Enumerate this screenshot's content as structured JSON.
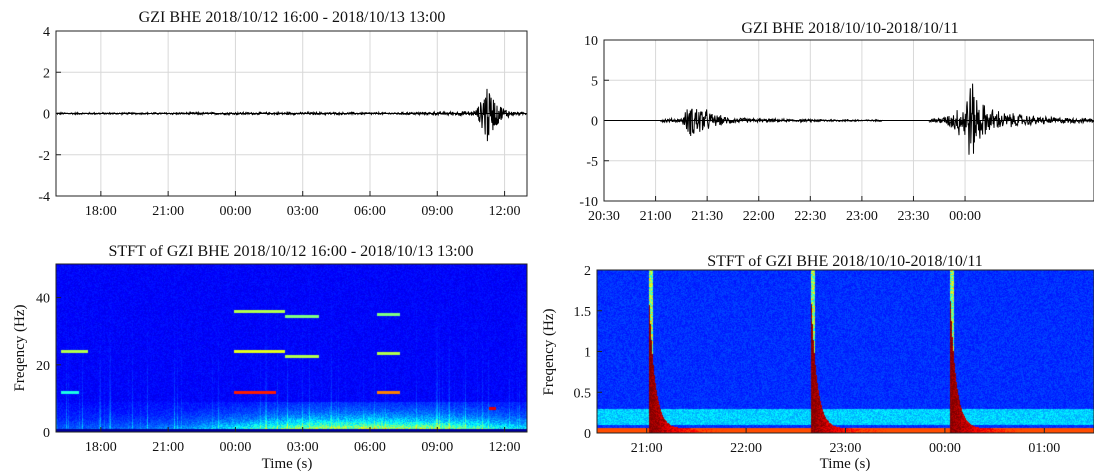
{
  "chart_data": [
    {
      "id": "p1",
      "type": "line",
      "title": "GZI  BHE  2018/10/12 16:00 - 2018/10/13 13:00",
      "xlabel": "",
      "ylabel": "",
      "ylim": [
        -4,
        4
      ],
      "yticks": [
        4,
        2,
        0,
        -2,
        -4
      ],
      "xlim_hours": [
        16.0,
        37.0
      ],
      "xticks": [
        {
          "label": "18:00",
          "h": 18
        },
        {
          "label": "21:00",
          "h": 21
        },
        {
          "label": "00:00",
          "h": 24
        },
        {
          "label": "03:00",
          "h": 27
        },
        {
          "label": "06:00",
          "h": 30
        },
        {
          "label": "09:00",
          "h": 33
        },
        {
          "label": "12:00",
          "h": 36
        }
      ],
      "grid": true,
      "series": [
        {
          "kind": "envelope",
          "color": "#000000",
          "x_hours": [
            16.0,
            20.0,
            24.0,
            28.0,
            31.0,
            33.5,
            34.7,
            35.0,
            35.1,
            35.25,
            35.4,
            35.6,
            35.8,
            36.1,
            36.5,
            37.0
          ],
          "amp": [
            0.05,
            0.05,
            0.07,
            0.07,
            0.06,
            0.1,
            0.15,
            0.8,
            2.4,
            1.9,
            1.2,
            0.8,
            0.5,
            0.25,
            0.1,
            0.06
          ]
        }
      ]
    },
    {
      "id": "p2",
      "type": "line",
      "title": "GZI  BHE  2018/10/10-2018/10/11",
      "xlabel": "",
      "ylabel": "",
      "ylim": [
        -10,
        10
      ],
      "yticks": [
        10,
        5,
        0,
        -5,
        -10
      ],
      "xlim_hours": [
        20.5,
        25.25
      ],
      "xticks": [
        {
          "label": "20:30",
          "h": 20.5
        },
        {
          "label": "21:00",
          "h": 21.0
        },
        {
          "label": "21:30",
          "h": 21.5
        },
        {
          "label": "22:00",
          "h": 22.0
        },
        {
          "label": "22:30",
          "h": 22.5
        },
        {
          "label": "23:00",
          "h": 23.0
        },
        {
          "label": "23:30",
          "h": 23.5
        },
        {
          "label": "00:00",
          "h": 24.0
        }
      ],
      "grid": true,
      "series": [
        {
          "kind": "envelope",
          "color": "#000000",
          "segments": [
            {
              "x_hours": [
                21.05,
                21.25,
                21.3,
                21.38,
                21.45,
                21.55,
                21.7,
                21.9,
                22.3,
                22.8,
                23.2
              ],
              "amp": [
                0.25,
                0.3,
                1.6,
                2.8,
                2.0,
                1.0,
                0.5,
                0.3,
                0.2,
                0.15,
                0.1
              ]
            },
            {
              "x_hours": [
                23.65,
                23.8,
                23.9,
                24.0,
                24.05,
                24.12,
                24.2,
                24.4,
                24.7,
                25.0,
                25.25
              ],
              "amp": [
                0.3,
                0.5,
                1.5,
                3.0,
                6.5,
                3.5,
                2.0,
                1.1,
                0.6,
                0.4,
                0.3
              ]
            }
          ]
        }
      ]
    },
    {
      "id": "p3",
      "type": "heatmap",
      "title": "STFT  of  GZI  BHE  2018/10/12 16:00 - 2018/10/13 13:00",
      "xlabel": "Time (s)",
      "ylabel": "Freqency (Hz)",
      "ylim": [
        0,
        50
      ],
      "yticks": [
        40,
        20,
        0
      ],
      "xlim_hours": [
        16.0,
        37.0
      ],
      "xticks": [
        {
          "label": "18:00",
          "h": 18
        },
        {
          "label": "21:00",
          "h": 21
        },
        {
          "label": "00:00",
          "h": 24
        },
        {
          "label": "03:00",
          "h": 27
        },
        {
          "label": "06:00",
          "h": 30
        },
        {
          "label": "09:00",
          "h": 33
        },
        {
          "label": "12:00",
          "h": 36
        }
      ],
      "colormap": "jet",
      "harmonic_lines": [
        {
          "h": [
            16.2,
            17.4
          ],
          "f": 24.0,
          "level": 0.55
        },
        {
          "h": [
            16.2,
            17.0
          ],
          "f": 12.0,
          "level": 0.4
        },
        {
          "h": [
            23.9,
            26.2
          ],
          "f": 36.0,
          "level": 0.55
        },
        {
          "h": [
            23.9,
            26.2
          ],
          "f": 24.0,
          "level": 0.6
        },
        {
          "h": [
            23.9,
            25.8
          ],
          "f": 12.0,
          "level": 0.85
        },
        {
          "h": [
            26.2,
            27.7
          ],
          "f": 34.5,
          "level": 0.5
        },
        {
          "h": [
            26.2,
            27.7
          ],
          "f": 22.5,
          "level": 0.55
        },
        {
          "h": [
            30.3,
            31.3
          ],
          "f": 35.0,
          "level": 0.5
        },
        {
          "h": [
            30.3,
            31.3
          ],
          "f": 23.5,
          "level": 0.55
        },
        {
          "h": [
            30.3,
            31.3
          ],
          "f": 12.0,
          "level": 0.75
        },
        {
          "h": [
            35.3,
            35.6
          ],
          "f": 7.0,
          "level": 0.9
        }
      ],
      "energy": {
        "h": [
          16,
          20,
          22,
          24,
          27,
          30,
          33,
          35,
          37
        ],
        "level": [
          0.12,
          0.15,
          0.22,
          0.35,
          0.55,
          0.6,
          0.55,
          0.45,
          0.3
        ]
      }
    },
    {
      "id": "p4",
      "type": "heatmap",
      "title": "STFT  of  GZI  BHE  2018/10/10-2018/10/11",
      "xlabel": "Time (s)",
      "ylabel": "Freqency (Hz)",
      "ylim": [
        0,
        2
      ],
      "yticks": [
        2,
        1.5,
        1,
        0.5,
        0
      ],
      "xlim_hours": [
        20.5,
        25.5
      ],
      "xticks": [
        {
          "label": "21:00",
          "h": 21
        },
        {
          "label": "22:00",
          "h": 22
        },
        {
          "label": "23:00",
          "h": 23
        },
        {
          "label": "00:00",
          "h": 24
        },
        {
          "label": "01:00",
          "h": 25
        }
      ],
      "colormap": "jet",
      "events_hours": [
        21.02,
        22.65,
        24.05
      ],
      "band": {
        "fmin": 0.1,
        "fmax": 0.3,
        "level": 0.28
      }
    }
  ]
}
